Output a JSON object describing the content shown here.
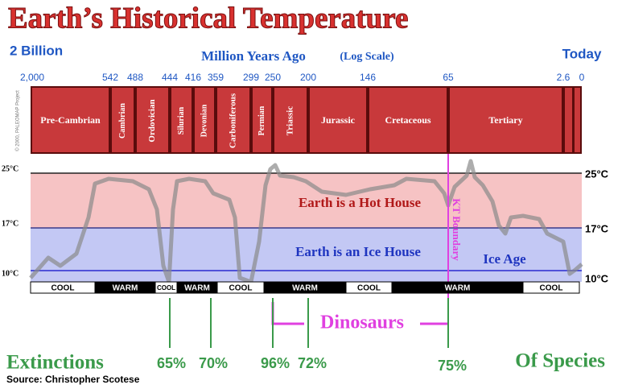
{
  "title": "Earth’s Historical Temperature",
  "axis": {
    "left_label": "2 Billion",
    "title": "Million Years Ago",
    "title_note": "(Log Scale)",
    "right_label": "Today",
    "ticks": [
      "2,000",
      "542",
      "488",
      "444",
      "416",
      "359",
      "299",
      "250",
      "200",
      "146",
      "65",
      "2.6",
      "0"
    ]
  },
  "copyright": "© 2000, PALEOMAP Project",
  "periods": [
    "Pre-Cambrian",
    "Cambrian",
    "Ordovician",
    "Silurian",
    "Devonian",
    "Carboniferous",
    "Permian",
    "Triassic",
    "Jurassic",
    "Cretaceous",
    "Tertiary"
  ],
  "temperature_labels": {
    "left": [
      "25°C",
      "17°C",
      "10°C"
    ],
    "right": [
      "25°C",
      "17°C",
      "10°C"
    ]
  },
  "zones": {
    "hot": "Earth is a Hot House",
    "ice": "Earth is an Ice House",
    "ice_age": "Ice Age",
    "kt": "KT Boundary"
  },
  "climate": [
    "COOL",
    "WARM",
    "COOL",
    "WARM",
    "COOL",
    "WARM",
    "COOL",
    "WARM",
    "COOL"
  ],
  "dinosaurs": "Dinosaurs",
  "extinctions": {
    "left": "Extinctions",
    "right": "Of Species",
    "percentages": [
      "65%",
      "70%",
      "96%",
      "72%",
      "75%"
    ]
  },
  "source": "Source: Christopher Scotese"
}
